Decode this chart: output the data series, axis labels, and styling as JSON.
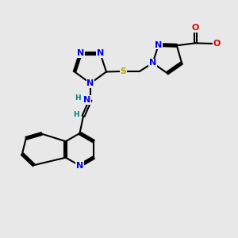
{
  "bg": "#e8e8e8",
  "NC": "#0000ee",
  "OC": "#dd0000",
  "SC": "#aaaa00",
  "CC": "#000000",
  "HC": "#008080",
  "BC": "#000000",
  "lw": 1.5,
  "fs": 8.0,
  "fss": 6.5,
  "xlim": [
    0,
    10
  ],
  "ylim": [
    0,
    10
  ]
}
